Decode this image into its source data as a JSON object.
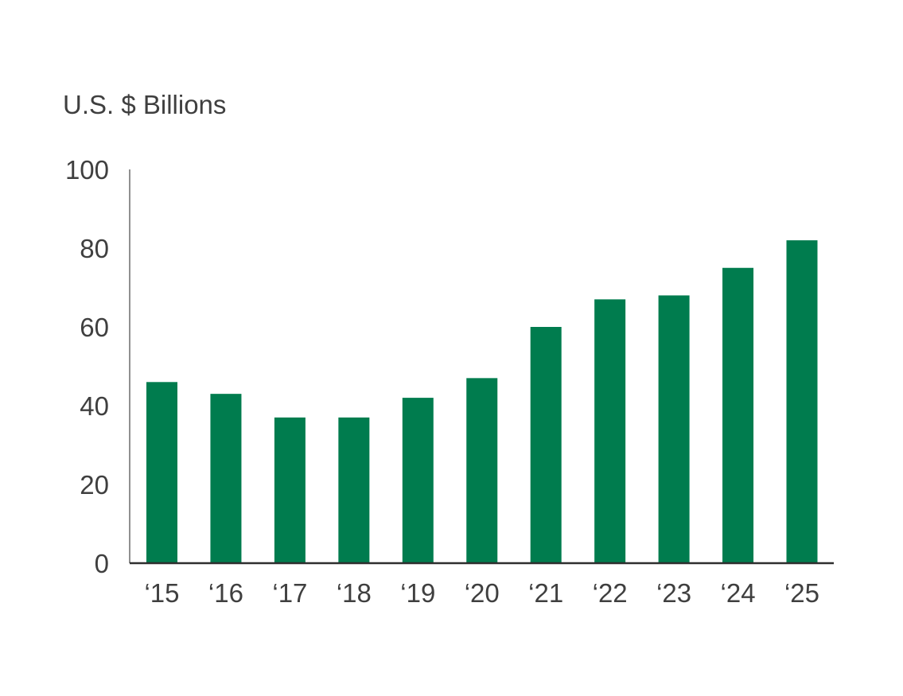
{
  "chart_data": {
    "type": "bar",
    "ylabel": "U.S. $ Billions",
    "categories": [
      "‘15",
      "‘16",
      "‘17",
      "‘18",
      "‘19",
      "‘20",
      "‘21",
      "‘22",
      "‘23",
      "‘24",
      "‘25"
    ],
    "values": [
      46,
      43,
      37,
      37,
      42,
      47,
      60,
      67,
      68,
      75,
      82
    ],
    "ylim": [
      0,
      100
    ],
    "yticks": [
      "0",
      "20",
      "40",
      "60",
      "80",
      "100"
    ],
    "grid": false,
    "legend": "none",
    "bar_color": "#007c4e"
  }
}
